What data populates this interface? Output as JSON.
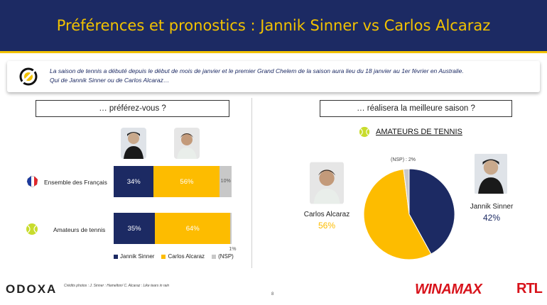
{
  "header": {
    "title": "Préférences et pronostics : Jannik Sinner vs Carlos Alcaraz"
  },
  "intro": {
    "line1": "La saison de tennis a débuté depuis le début de mois de janvier et le premier Grand Chelem de la saison aura lieu du 18 janvier au 1er février en Australie.",
    "line2": "Qui de Jannik  Sinner ou de Carlos Alcaraz…"
  },
  "left": {
    "question": "… préférez-vous ?"
  },
  "right": {
    "question": "… réalisera la meilleure saison ?",
    "subtitle": "AMATEURS DE TENNIS"
  },
  "colors": {
    "sinner": "#1c2a63",
    "alcaraz": "#fdbc00",
    "nsp": "#c8c8c8",
    "accent": "#f2c200"
  },
  "chart_data": [
    {
      "type": "bar",
      "orientation": "horizontal-stacked",
      "categories": [
        "Ensemble des Français",
        "Amateurs de tennis"
      ],
      "series": [
        {
          "name": "Jannik  Sinner",
          "values": [
            34,
            35
          ],
          "labels": [
            "34%",
            "35%"
          ]
        },
        {
          "name": "Carlos Alcaraz",
          "values": [
            56,
            64
          ],
          "labels": [
            "56%",
            "64%"
          ]
        },
        {
          "name": "(NSP)",
          "values": [
            10,
            1
          ],
          "labels": [
            "10%",
            "1%"
          ]
        }
      ],
      "xlim": [
        0,
        100
      ]
    },
    {
      "type": "pie",
      "labels": [
        "Jannik Sinner",
        "Carlos Alcaraz",
        "(NSP)"
      ],
      "values": [
        42,
        56,
        2
      ],
      "value_labels": [
        "42%",
        "56%",
        "(NSP) : 2%"
      ]
    }
  ],
  "footer": {
    "credit": "Crédits photos : J. Sinner : Hamelton/ C. Alcaraz : Like tears in rain",
    "page": "8",
    "brand": "ODOXA",
    "sponsor1": "WINAMAX",
    "sponsor2": "RTL"
  }
}
